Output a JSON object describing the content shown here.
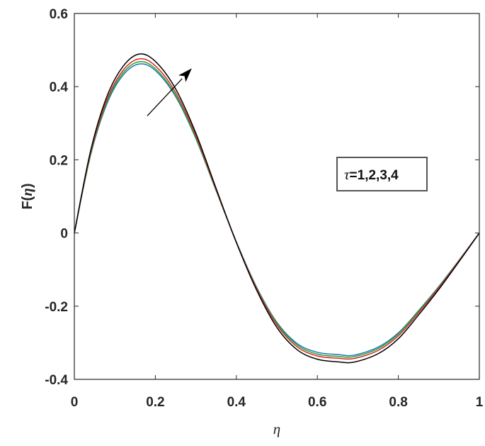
{
  "chart_data": {
    "type": "line",
    "xlabel": "η",
    "ylabel_prefix": "F(",
    "ylabel_var": "η",
    "ylabel_suffix": ")",
    "xlim": [
      0,
      1
    ],
    "ylim": [
      -0.4,
      0.6
    ],
    "xticks": [
      0,
      0.2,
      0.4,
      0.6,
      0.8,
      1
    ],
    "xtick_labels": [
      "0",
      "0.2",
      "0.4",
      "0.6",
      "0.8",
      "1"
    ],
    "yticks": [
      -0.4,
      -0.2,
      0,
      0.2,
      0.4,
      0.6
    ],
    "ytick_labels": [
      "-0.4",
      "-0.2",
      "0",
      "0.2",
      "0.4",
      "0.6"
    ],
    "grid": false,
    "annotation": {
      "var": "τ",
      "text": "=1,2,3,4",
      "arrow_from": [
        0.18,
        0.32
      ],
      "arrow_to": [
        0.29,
        0.45
      ]
    },
    "series": [
      {
        "color": "#1f77b4",
        "x": [
          0,
          0.04,
          0.08,
          0.12,
          0.16,
          0.2,
          0.25,
          0.3,
          0.35,
          0.4,
          0.45,
          0.5,
          0.55,
          0.6,
          0.65,
          0.69,
          0.75,
          0.8,
          0.85,
          0.9,
          0.95,
          1
        ],
        "y": [
          0.0,
          0.212,
          0.352,
          0.431,
          0.462,
          0.444,
          0.373,
          0.258,
          0.116,
          -0.024,
          -0.148,
          -0.244,
          -0.302,
          -0.326,
          -0.332,
          -0.334,
          -0.312,
          -0.273,
          -0.212,
          -0.146,
          -0.074,
          0.0
        ]
      },
      {
        "color": "#2ca02c",
        "x": [
          0,
          0.04,
          0.08,
          0.12,
          0.16,
          0.2,
          0.25,
          0.3,
          0.35,
          0.4,
          0.45,
          0.5,
          0.55,
          0.6,
          0.65,
          0.69,
          0.75,
          0.8,
          0.85,
          0.9,
          0.95,
          1
        ],
        "y": [
          0.0,
          0.215,
          0.357,
          0.437,
          0.468,
          0.449,
          0.377,
          0.261,
          0.117,
          -0.025,
          -0.15,
          -0.247,
          -0.306,
          -0.331,
          -0.337,
          -0.338,
          -0.316,
          -0.276,
          -0.214,
          -0.148,
          -0.075,
          0.0
        ]
      },
      {
        "color": "#d62728",
        "x": [
          0,
          0.04,
          0.08,
          0.12,
          0.16,
          0.2,
          0.25,
          0.3,
          0.35,
          0.4,
          0.45,
          0.5,
          0.55,
          0.6,
          0.65,
          0.69,
          0.75,
          0.8,
          0.85,
          0.9,
          0.95,
          1
        ],
        "y": [
          0.0,
          0.219,
          0.363,
          0.444,
          0.476,
          0.457,
          0.384,
          0.266,
          0.119,
          -0.025,
          -0.152,
          -0.251,
          -0.311,
          -0.336,
          -0.342,
          -0.343,
          -0.321,
          -0.281,
          -0.218,
          -0.15,
          -0.076,
          0.0
        ]
      },
      {
        "color": "#000000",
        "x": [
          0,
          0.04,
          0.08,
          0.12,
          0.16,
          0.2,
          0.25,
          0.3,
          0.35,
          0.4,
          0.45,
          0.5,
          0.55,
          0.6,
          0.65,
          0.69,
          0.75,
          0.8,
          0.85,
          0.9,
          0.95,
          1
        ],
        "y": [
          0.0,
          0.224,
          0.372,
          0.455,
          0.489,
          0.469,
          0.394,
          0.273,
          0.122,
          -0.026,
          -0.156,
          -0.258,
          -0.319,
          -0.345,
          -0.352,
          -0.353,
          -0.33,
          -0.289,
          -0.224,
          -0.154,
          -0.078,
          0.0
        ]
      }
    ]
  }
}
